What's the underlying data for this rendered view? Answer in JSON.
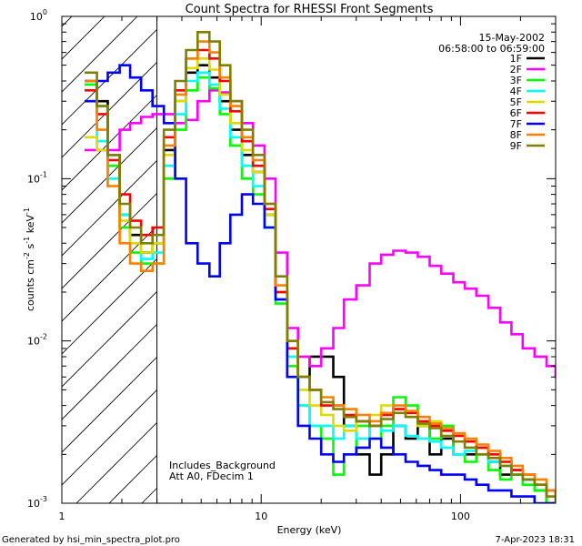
{
  "chart_data": {
    "type": "line",
    "title": "Count Spectra for RHESSI Front Segments",
    "xlabel": "Energy (keV)",
    "ylabel": "counts cm",
    "ylabel_sup1": "-2",
    "ylabel_mid": " s",
    "ylabel_sup2": "-1",
    "ylabel_end": " keV",
    "ylabel_sup3": "-1",
    "xscale": "log",
    "yscale": "log",
    "xlim": [
      1,
      300
    ],
    "ylim": [
      0.001,
      1
    ],
    "xticks": [
      {
        "value": 1,
        "label": "1"
      },
      {
        "value": 10,
        "label": "10"
      },
      {
        "value": 100,
        "label": "100"
      }
    ],
    "yticks": [
      {
        "value": 1,
        "base": "10",
        "exp": "0"
      },
      {
        "value": 0.1,
        "base": "10",
        "exp": "-1"
      },
      {
        "value": 0.01,
        "base": "10",
        "exp": "-2"
      },
      {
        "value": 0.001,
        "base": "10",
        "exp": "-3"
      }
    ],
    "hatched_region": [
      1,
      3
    ],
    "date": "15-May-2002",
    "time_range": "06:58:00 to 06:59:00",
    "annotation_line1": "Includes_Background",
    "annotation_line2": "Att A0, FDecim 1",
    "legend_position": "top-right",
    "footer_left": "Generated by hsi_min_spectra_plot.pro",
    "footer_right": "7-Apr-2023 18:31",
    "bins": [
      1.3,
      1.5,
      1.7,
      1.95,
      2.2,
      2.5,
      2.85,
      3.25,
      3.7,
      4.2,
      4.8,
      5.5,
      6.2,
      7.0,
      8.0,
      9.1,
      10.4,
      11.8,
      13.5,
      15.3,
      17.5,
      20,
      23,
      26,
      30,
      35,
      40,
      46,
      53,
      61,
      70,
      80,
      92,
      105,
      120,
      138,
      158,
      180,
      205,
      235,
      270,
      300
    ],
    "series": [
      {
        "name": "1F",
        "color": "#000000",
        "values": [
          0.4,
          0.3,
          0.14,
          0.06,
          0.045,
          0.035,
          0.04,
          0.15,
          0.3,
          0.45,
          0.5,
          0.42,
          0.3,
          0.2,
          0.14,
          0.11,
          0.06,
          0.02,
          0.009,
          0.006,
          0.008,
          0.008,
          0.006,
          0.003,
          0.002,
          0.0015,
          0.002,
          0.003,
          0.0025,
          0.003,
          0.002,
          0.0025,
          0.002,
          0.002,
          0.0022,
          0.0018,
          0.0015,
          0.0016,
          0.0014,
          0.0012,
          0.001,
          0.001
        ]
      },
      {
        "name": "2F",
        "color": "#ff00ff",
        "values": [
          0.15,
          0.15,
          0.15,
          0.2,
          0.22,
          0.24,
          0.25,
          0.25,
          0.22,
          0.23,
          0.3,
          0.35,
          0.34,
          0.3,
          0.22,
          0.16,
          0.1,
          0.035,
          0.012,
          0.008,
          0.007,
          0.009,
          0.012,
          0.018,
          0.022,
          0.03,
          0.034,
          0.036,
          0.035,
          0.033,
          0.029,
          0.026,
          0.023,
          0.021,
          0.019,
          0.016,
          0.013,
          0.011,
          0.009,
          0.008,
          0.007,
          0.006
        ]
      },
      {
        "name": "3F",
        "color": "#00ff00",
        "values": [
          0.38,
          0.28,
          0.12,
          0.05,
          0.035,
          0.03,
          0.03,
          0.1,
          0.2,
          0.35,
          0.42,
          0.36,
          0.25,
          0.16,
          0.1,
          0.08,
          0.05,
          0.017,
          0.007,
          0.004,
          0.003,
          0.0025,
          0.0015,
          0.002,
          0.003,
          0.0025,
          0.003,
          0.0045,
          0.004,
          0.003,
          0.0025,
          0.003,
          0.002,
          0.0018,
          0.002,
          0.0016,
          0.0014,
          0.0015,
          0.0013,
          0.0012,
          0.001,
          0.001
        ]
      },
      {
        "name": "4F",
        "color": "#00ffff",
        "values": [
          0.3,
          0.17,
          0.1,
          0.06,
          0.04,
          0.032,
          0.035,
          0.12,
          0.25,
          0.4,
          0.45,
          0.38,
          0.27,
          0.18,
          0.12,
          0.09,
          0.05,
          0.018,
          0.008,
          0.004,
          0.003,
          0.003,
          0.0025,
          0.003,
          0.0025,
          0.003,
          0.0028,
          0.003,
          0.0026,
          0.0025,
          0.0024,
          0.0022,
          0.002,
          0.0021,
          0.002,
          0.0018,
          0.0017,
          0.0015,
          0.0014,
          0.0013,
          0.0012,
          0.0011
        ]
      },
      {
        "name": "5F",
        "color": "#dcdc00",
        "values": [
          0.18,
          0.15,
          0.09,
          0.055,
          0.04,
          0.035,
          0.04,
          0.14,
          0.3,
          0.48,
          0.55,
          0.47,
          0.33,
          0.22,
          0.15,
          0.11,
          0.06,
          0.02,
          0.009,
          0.005,
          0.004,
          0.0035,
          0.003,
          0.0028,
          0.0032,
          0.0035,
          0.004,
          0.0038,
          0.0034,
          0.003,
          0.0032,
          0.0028,
          0.0026,
          0.0024,
          0.0022,
          0.002,
          0.0018,
          0.0016,
          0.0015,
          0.0014,
          0.0012,
          0.0011
        ]
      },
      {
        "name": "6F",
        "color": "#ff0000",
        "values": [
          0.35,
          0.25,
          0.13,
          0.08,
          0.055,
          0.045,
          0.05,
          0.18,
          0.35,
          0.55,
          0.62,
          0.55,
          0.4,
          0.26,
          0.17,
          0.12,
          0.065,
          0.02,
          0.009,
          0.006,
          0.005,
          0.004,
          0.004,
          0.0035,
          0.0032,
          0.003,
          0.0035,
          0.0038,
          0.0036,
          0.0032,
          0.003,
          0.0028,
          0.0026,
          0.0024,
          0.0022,
          0.002,
          0.0018,
          0.0016,
          0.0015,
          0.0013,
          0.0012,
          0.0011
        ]
      },
      {
        "name": "7F",
        "color": "#0000ff",
        "values": [
          0.3,
          0.4,
          0.45,
          0.5,
          0.42,
          0.35,
          0.28,
          0.22,
          0.1,
          0.04,
          0.03,
          0.025,
          0.04,
          0.06,
          0.08,
          0.07,
          0.05,
          0.018,
          0.006,
          0.003,
          0.0025,
          0.002,
          0.0018,
          0.002,
          0.0022,
          0.0025,
          0.0022,
          0.002,
          0.0018,
          0.0017,
          0.0016,
          0.0015,
          0.0015,
          0.0014,
          0.0013,
          0.0012,
          0.0012,
          0.0011,
          0.0011,
          0.001,
          0.001,
          0.001
        ]
      },
      {
        "name": "8F",
        "color": "#ff8000",
        "values": [
          0.4,
          0.2,
          0.09,
          0.04,
          0.03,
          0.027,
          0.03,
          0.16,
          0.33,
          0.55,
          0.7,
          0.6,
          0.42,
          0.28,
          0.18,
          0.13,
          0.07,
          0.022,
          0.01,
          0.006,
          0.005,
          0.0045,
          0.004,
          0.0038,
          0.0035,
          0.0032,
          0.0036,
          0.004,
          0.0037,
          0.0034,
          0.0031,
          0.0029,
          0.0027,
          0.0025,
          0.0023,
          0.0021,
          0.0019,
          0.0017,
          0.0015,
          0.0014,
          0.0012,
          0.0011
        ]
      },
      {
        "name": "9F",
        "color": "#808000",
        "values": [
          0.45,
          0.28,
          0.14,
          0.07,
          0.05,
          0.04,
          0.045,
          0.2,
          0.4,
          0.62,
          0.8,
          0.7,
          0.5,
          0.3,
          0.2,
          0.14,
          0.07,
          0.025,
          0.01,
          0.006,
          0.005,
          0.0042,
          0.0038,
          0.0034,
          0.0032,
          0.003,
          0.0033,
          0.0036,
          0.0034,
          0.0031,
          0.0029,
          0.0026,
          0.0024,
          0.0022,
          0.002,
          0.0019,
          0.0017,
          0.0015,
          0.0014,
          0.0013,
          0.0011,
          0.001
        ]
      }
    ]
  }
}
